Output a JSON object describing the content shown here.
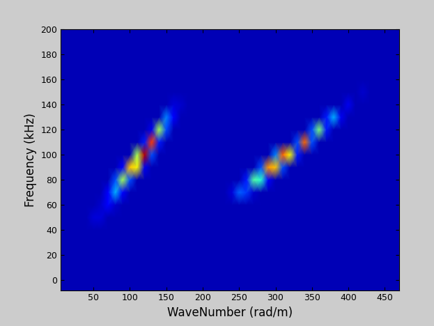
{
  "chart_data": {
    "type": "heatmap",
    "x_label": "WaveNumber (rad/m)",
    "y_label": "Frequency (kHz)",
    "xlim": [
      5,
      470
    ],
    "xticks": [
      50,
      100,
      150,
      200,
      250,
      300,
      350,
      400,
      450
    ],
    "ylim": [
      -8,
      200
    ],
    "yticks": [
      0,
      20,
      40,
      60,
      80,
      100,
      120,
      140,
      160,
      180,
      200
    ],
    "color": "jet",
    "zlim": [
      0,
      1
    ],
    "x": [
      0,
      10,
      20,
      30,
      40,
      50,
      60,
      70,
      80,
      90,
      100,
      110,
      120,
      130,
      140,
      150,
      160,
      170,
      180,
      190,
      200,
      210,
      220,
      230,
      240,
      250,
      260,
      270,
      280,
      290,
      300,
      310,
      320,
      330,
      340,
      350,
      360,
      370,
      380,
      390,
      400,
      410,
      420,
      430,
      440,
      450,
      460,
      470
    ],
    "y": [
      -10,
      0,
      10,
      20,
      30,
      40,
      50,
      60,
      70,
      80,
      90,
      100,
      110,
      120,
      130,
      140,
      150,
      160,
      170,
      180,
      190,
      200
    ],
    "cells": [
      [
        0.05,
        0.05,
        0.05,
        0.05,
        0.05,
        0.05,
        0.05,
        0.05,
        0.05,
        0.05,
        0.05,
        0.05,
        0.05,
        0.05,
        0.05,
        0.05,
        0.05,
        0.05,
        0.05,
        0.05,
        0.05,
        0.05,
        0.05,
        0.05,
        0.05,
        0.05,
        0.05,
        0.05,
        0.05,
        0.05,
        0.05,
        0.05,
        0.05,
        0.05,
        0.05,
        0.05,
        0.05,
        0.05,
        0.05,
        0.05,
        0.05,
        0.05,
        0.05,
        0.05,
        0.05,
        0.05,
        0.05,
        0.05
      ],
      [
        0.05,
        0.05,
        0.05,
        0.05,
        0.05,
        0.05,
        0.05,
        0.05,
        0.05,
        0.05,
        0.05,
        0.05,
        0.05,
        0.05,
        0.05,
        0.05,
        0.05,
        0.05,
        0.05,
        0.05,
        0.05,
        0.05,
        0.05,
        0.05,
        0.05,
        0.05,
        0.05,
        0.05,
        0.05,
        0.05,
        0.05,
        0.05,
        0.05,
        0.05,
        0.05,
        0.05,
        0.05,
        0.05,
        0.05,
        0.05,
        0.05,
        0.05,
        0.05,
        0.05,
        0.05,
        0.05,
        0.05,
        0.05
      ],
      [
        0.05,
        0.05,
        0.05,
        0.05,
        0.05,
        0.05,
        0.05,
        0.05,
        0.05,
        0.05,
        0.05,
        0.05,
        0.05,
        0.05,
        0.05,
        0.05,
        0.05,
        0.05,
        0.05,
        0.05,
        0.05,
        0.05,
        0.05,
        0.05,
        0.05,
        0.05,
        0.05,
        0.05,
        0.05,
        0.05,
        0.05,
        0.05,
        0.05,
        0.05,
        0.05,
        0.05,
        0.05,
        0.05,
        0.05,
        0.05,
        0.05,
        0.05,
        0.05,
        0.05,
        0.05,
        0.05,
        0.05,
        0.05
      ],
      [
        0.05,
        0.05,
        0.05,
        0.05,
        0.05,
        0.05,
        0.05,
        0.05,
        0.05,
        0.05,
        0.05,
        0.05,
        0.05,
        0.05,
        0.05,
        0.05,
        0.05,
        0.05,
        0.05,
        0.05,
        0.05,
        0.05,
        0.05,
        0.05,
        0.05,
        0.05,
        0.05,
        0.05,
        0.05,
        0.05,
        0.05,
        0.05,
        0.05,
        0.05,
        0.05,
        0.05,
        0.05,
        0.05,
        0.05,
        0.05,
        0.05,
        0.05,
        0.05,
        0.05,
        0.05,
        0.05,
        0.05,
        0.05
      ],
      [
        0.05,
        0.05,
        0.05,
        0.05,
        0.05,
        0.05,
        0.05,
        0.05,
        0.05,
        0.05,
        0.05,
        0.05,
        0.05,
        0.05,
        0.05,
        0.05,
        0.05,
        0.05,
        0.05,
        0.05,
        0.05,
        0.05,
        0.05,
        0.05,
        0.05,
        0.05,
        0.05,
        0.05,
        0.05,
        0.05,
        0.05,
        0.05,
        0.05,
        0.05,
        0.05,
        0.05,
        0.05,
        0.05,
        0.05,
        0.05,
        0.05,
        0.05,
        0.05,
        0.05,
        0.05,
        0.05,
        0.05,
        0.05
      ],
      [
        0.05,
        0.05,
        0.05,
        0.05,
        0.05,
        0.05,
        0.05,
        0.05,
        0.05,
        0.05,
        0.05,
        0.05,
        0.05,
        0.05,
        0.05,
        0.05,
        0.05,
        0.05,
        0.05,
        0.05,
        0.05,
        0.05,
        0.05,
        0.05,
        0.05,
        0.05,
        0.05,
        0.05,
        0.05,
        0.05,
        0.05,
        0.05,
        0.05,
        0.05,
        0.05,
        0.05,
        0.05,
        0.05,
        0.05,
        0.05,
        0.05,
        0.05,
        0.05,
        0.05,
        0.05,
        0.05,
        0.05,
        0.05
      ],
      [
        0.05,
        0.05,
        0.05,
        0.05,
        0.05,
        0.08,
        0.08,
        0.05,
        0.05,
        0.05,
        0.05,
        0.05,
        0.05,
        0.05,
        0.05,
        0.05,
        0.05,
        0.05,
        0.05,
        0.05,
        0.05,
        0.05,
        0.05,
        0.05,
        0.05,
        0.05,
        0.05,
        0.05,
        0.05,
        0.05,
        0.05,
        0.05,
        0.05,
        0.05,
        0.05,
        0.05,
        0.05,
        0.05,
        0.05,
        0.05,
        0.05,
        0.05,
        0.05,
        0.05,
        0.05,
        0.05,
        0.05,
        0.05
      ],
      [
        0.05,
        0.05,
        0.05,
        0.05,
        0.05,
        0.05,
        0.07,
        0.12,
        0.07,
        0.05,
        0.05,
        0.05,
        0.05,
        0.05,
        0.05,
        0.05,
        0.05,
        0.05,
        0.05,
        0.05,
        0.05,
        0.05,
        0.05,
        0.05,
        0.05,
        0.05,
        0.05,
        0.05,
        0.05,
        0.05,
        0.05,
        0.05,
        0.05,
        0.05,
        0.05,
        0.05,
        0.05,
        0.05,
        0.05,
        0.05,
        0.05,
        0.05,
        0.05,
        0.05,
        0.05,
        0.05,
        0.05,
        0.05
      ],
      [
        0.05,
        0.05,
        0.05,
        0.05,
        0.05,
        0.05,
        0.05,
        0.12,
        0.3,
        0.12,
        0.05,
        0.05,
        0.05,
        0.05,
        0.05,
        0.05,
        0.05,
        0.05,
        0.05,
        0.05,
        0.05,
        0.05,
        0.05,
        0.05,
        0.08,
        0.22,
        0.18,
        0.07,
        0.05,
        0.05,
        0.05,
        0.05,
        0.05,
        0.05,
        0.05,
        0.05,
        0.05,
        0.05,
        0.05,
        0.05,
        0.05,
        0.05,
        0.05,
        0.05,
        0.05,
        0.05,
        0.05,
        0.05
      ],
      [
        0.05,
        0.05,
        0.05,
        0.05,
        0.05,
        0.05,
        0.05,
        0.05,
        0.2,
        0.55,
        0.2,
        0.05,
        0.05,
        0.05,
        0.05,
        0.05,
        0.05,
        0.05,
        0.05,
        0.05,
        0.05,
        0.05,
        0.05,
        0.05,
        0.05,
        0.05,
        0.15,
        0.45,
        0.4,
        0.12,
        0.05,
        0.05,
        0.05,
        0.05,
        0.05,
        0.05,
        0.05,
        0.05,
        0.05,
        0.05,
        0.05,
        0.05,
        0.05,
        0.05,
        0.05,
        0.05,
        0.05,
        0.05
      ],
      [
        0.05,
        0.05,
        0.05,
        0.05,
        0.05,
        0.05,
        0.05,
        0.05,
        0.05,
        0.12,
        0.7,
        0.65,
        0.1,
        0.05,
        0.05,
        0.05,
        0.05,
        0.05,
        0.05,
        0.05,
        0.05,
        0.05,
        0.05,
        0.05,
        0.05,
        0.05,
        0.05,
        0.05,
        0.2,
        0.75,
        0.7,
        0.2,
        0.05,
        0.05,
        0.05,
        0.05,
        0.05,
        0.05,
        0.05,
        0.05,
        0.05,
        0.05,
        0.05,
        0.05,
        0.05,
        0.05,
        0.05,
        0.05
      ],
      [
        0.05,
        0.05,
        0.05,
        0.05,
        0.05,
        0.05,
        0.05,
        0.05,
        0.05,
        0.05,
        0.05,
        0.55,
        0.95,
        0.2,
        0.05,
        0.05,
        0.05,
        0.05,
        0.05,
        0.05,
        0.05,
        0.05,
        0.05,
        0.05,
        0.05,
        0.05,
        0.05,
        0.05,
        0.05,
        0.05,
        0.25,
        0.8,
        0.65,
        0.15,
        0.05,
        0.05,
        0.05,
        0.05,
        0.05,
        0.05,
        0.05,
        0.05,
        0.05,
        0.05,
        0.05,
        0.05,
        0.05,
        0.05
      ],
      [
        0.05,
        0.05,
        0.05,
        0.05,
        0.05,
        0.05,
        0.05,
        0.05,
        0.05,
        0.05,
        0.05,
        0.05,
        0.15,
        0.85,
        0.15,
        0.05,
        0.05,
        0.05,
        0.05,
        0.05,
        0.05,
        0.05,
        0.05,
        0.05,
        0.05,
        0.05,
        0.05,
        0.05,
        0.05,
        0.05,
        0.05,
        0.05,
        0.05,
        0.2,
        0.8,
        0.2,
        0.05,
        0.05,
        0.05,
        0.05,
        0.05,
        0.05,
        0.05,
        0.05,
        0.05,
        0.05,
        0.05,
        0.05
      ],
      [
        0.05,
        0.05,
        0.05,
        0.05,
        0.05,
        0.05,
        0.05,
        0.05,
        0.05,
        0.05,
        0.05,
        0.05,
        0.05,
        0.1,
        0.55,
        0.2,
        0.05,
        0.05,
        0.05,
        0.05,
        0.05,
        0.05,
        0.05,
        0.05,
        0.05,
        0.05,
        0.05,
        0.05,
        0.05,
        0.05,
        0.05,
        0.05,
        0.05,
        0.05,
        0.05,
        0.2,
        0.5,
        0.15,
        0.05,
        0.05,
        0.05,
        0.05,
        0.05,
        0.05,
        0.05,
        0.05,
        0.05,
        0.05
      ],
      [
        0.05,
        0.05,
        0.05,
        0.05,
        0.05,
        0.05,
        0.05,
        0.05,
        0.05,
        0.05,
        0.05,
        0.05,
        0.05,
        0.05,
        0.05,
        0.25,
        0.12,
        0.05,
        0.05,
        0.05,
        0.05,
        0.05,
        0.05,
        0.05,
        0.05,
        0.05,
        0.05,
        0.05,
        0.05,
        0.05,
        0.05,
        0.05,
        0.05,
        0.05,
        0.05,
        0.05,
        0.05,
        0.15,
        0.3,
        0.1,
        0.05,
        0.05,
        0.05,
        0.05,
        0.05,
        0.05,
        0.05,
        0.05
      ],
      [
        0.05,
        0.05,
        0.05,
        0.05,
        0.05,
        0.05,
        0.05,
        0.05,
        0.05,
        0.05,
        0.05,
        0.05,
        0.05,
        0.05,
        0.05,
        0.05,
        0.08,
        0.07,
        0.05,
        0.05,
        0.05,
        0.05,
        0.05,
        0.05,
        0.05,
        0.05,
        0.05,
        0.05,
        0.05,
        0.05,
        0.05,
        0.05,
        0.05,
        0.05,
        0.05,
        0.05,
        0.05,
        0.05,
        0.05,
        0.05,
        0.1,
        0.05,
        0.05,
        0.05,
        0.05,
        0.05,
        0.05,
        0.05
      ],
      [
        0.05,
        0.05,
        0.05,
        0.05,
        0.05,
        0.05,
        0.05,
        0.05,
        0.05,
        0.05,
        0.05,
        0.05,
        0.05,
        0.05,
        0.05,
        0.05,
        0.05,
        0.05,
        0.05,
        0.05,
        0.05,
        0.05,
        0.05,
        0.05,
        0.05,
        0.05,
        0.05,
        0.05,
        0.05,
        0.05,
        0.05,
        0.05,
        0.05,
        0.05,
        0.05,
        0.05,
        0.05,
        0.05,
        0.05,
        0.05,
        0.05,
        0.05,
        0.07,
        0.05,
        0.05,
        0.05,
        0.05,
        0.05
      ],
      [
        0.05,
        0.05,
        0.05,
        0.05,
        0.05,
        0.05,
        0.05,
        0.05,
        0.05,
        0.05,
        0.05,
        0.05,
        0.05,
        0.05,
        0.05,
        0.05,
        0.05,
        0.05,
        0.05,
        0.05,
        0.05,
        0.05,
        0.05,
        0.05,
        0.05,
        0.05,
        0.05,
        0.05,
        0.05,
        0.05,
        0.05,
        0.05,
        0.05,
        0.05,
        0.05,
        0.05,
        0.05,
        0.05,
        0.05,
        0.05,
        0.05,
        0.05,
        0.05,
        0.05,
        0.05,
        0.05,
        0.05,
        0.05
      ],
      [
        0.05,
        0.05,
        0.05,
        0.05,
        0.05,
        0.05,
        0.05,
        0.05,
        0.05,
        0.05,
        0.05,
        0.05,
        0.05,
        0.05,
        0.05,
        0.05,
        0.05,
        0.05,
        0.05,
        0.05,
        0.05,
        0.05,
        0.05,
        0.05,
        0.05,
        0.05,
        0.05,
        0.05,
        0.05,
        0.05,
        0.05,
        0.05,
        0.05,
        0.05,
        0.05,
        0.05,
        0.05,
        0.05,
        0.05,
        0.05,
        0.05,
        0.05,
        0.05,
        0.05,
        0.05,
        0.05,
        0.05,
        0.05
      ],
      [
        0.05,
        0.05,
        0.05,
        0.05,
        0.05,
        0.05,
        0.05,
        0.05,
        0.05,
        0.05,
        0.05,
        0.05,
        0.05,
        0.05,
        0.05,
        0.05,
        0.05,
        0.05,
        0.05,
        0.05,
        0.05,
        0.05,
        0.05,
        0.05,
        0.05,
        0.05,
        0.05,
        0.05,
        0.05,
        0.05,
        0.05,
        0.05,
        0.05,
        0.05,
        0.05,
        0.05,
        0.05,
        0.05,
        0.05,
        0.05,
        0.05,
        0.05,
        0.05,
        0.05,
        0.05,
        0.05,
        0.05,
        0.05
      ],
      [
        0.05,
        0.05,
        0.05,
        0.05,
        0.05,
        0.05,
        0.05,
        0.05,
        0.05,
        0.05,
        0.05,
        0.05,
        0.05,
        0.05,
        0.05,
        0.05,
        0.05,
        0.05,
        0.05,
        0.05,
        0.05,
        0.05,
        0.05,
        0.05,
        0.05,
        0.05,
        0.05,
        0.05,
        0.05,
        0.05,
        0.05,
        0.05,
        0.05,
        0.05,
        0.05,
        0.05,
        0.05,
        0.05,
        0.05,
        0.05,
        0.05,
        0.05,
        0.05,
        0.05,
        0.05,
        0.05,
        0.05,
        0.05
      ],
      [
        0.05,
        0.05,
        0.05,
        0.05,
        0.05,
        0.05,
        0.05,
        0.05,
        0.05,
        0.05,
        0.05,
        0.05,
        0.05,
        0.05,
        0.05,
        0.05,
        0.05,
        0.05,
        0.05,
        0.05,
        0.05,
        0.05,
        0.05,
        0.05,
        0.05,
        0.05,
        0.05,
        0.05,
        0.05,
        0.05,
        0.05,
        0.05,
        0.05,
        0.05,
        0.05,
        0.05,
        0.05,
        0.05,
        0.05,
        0.05,
        0.05,
        0.05,
        0.05,
        0.05,
        0.05,
        0.05,
        0.05,
        0.05
      ]
    ]
  }
}
